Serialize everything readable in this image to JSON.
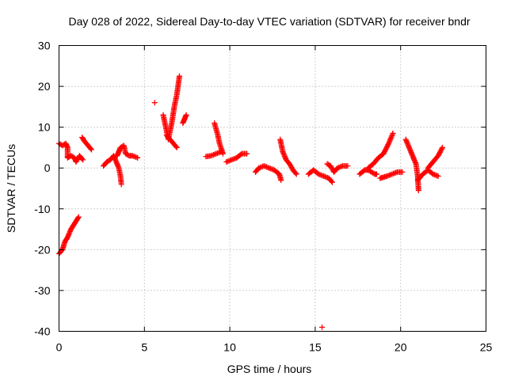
{
  "chart_data": {
    "type": "scatter",
    "title": "Day 028 of 2022, Sidereal Day-to-day VTEC variation (SDTVAR) for receiver bndr",
    "xlabel": "GPS time / hours",
    "ylabel": "SDTVAR / TECUs",
    "xlim": [
      0,
      25
    ],
    "ylim": [
      -40,
      30
    ],
    "xticks": [
      0,
      5,
      10,
      15,
      20,
      25
    ],
    "yticks": [
      -40,
      -30,
      -20,
      -10,
      0,
      10,
      20,
      30
    ],
    "xtick_labels": [
      "0",
      "5",
      "10",
      "15",
      "20",
      "25"
    ],
    "ytick_labels": [
      "-40",
      "-30",
      "-20",
      "-10",
      "0",
      "10",
      "20",
      "30"
    ],
    "grid": true,
    "marker": "+",
    "marker_color": "#ff0000",
    "series": [
      {
        "name": "SDTVAR",
        "segments": [
          [
            [
              0.0,
              -21
            ],
            [
              0.2,
              -20
            ],
            [
              0.35,
              -18
            ],
            [
              0.5,
              -17
            ],
            [
              0.7,
              -15
            ],
            [
              0.85,
              -14
            ],
            [
              1.0,
              -13
            ],
            [
              1.15,
              -12
            ]
          ],
          [
            [
              0.0,
              6
            ],
            [
              0.2,
              5.5
            ],
            [
              0.4,
              6
            ],
            [
              0.5,
              5
            ],
            [
              0.5,
              2.5
            ],
            [
              0.7,
              3
            ],
            [
              0.9,
              2.5
            ],
            [
              1.0,
              1.5
            ],
            [
              1.2,
              3
            ],
            [
              1.4,
              2
            ]
          ],
          [
            [
              1.35,
              7.5
            ],
            [
              1.5,
              6.5
            ],
            [
              1.7,
              5.5
            ],
            [
              1.9,
              4.5
            ]
          ],
          [
            [
              2.6,
              0.5
            ],
            [
              2.8,
              1.5
            ],
            [
              3.0,
              2
            ],
            [
              3.2,
              3
            ],
            [
              3.3,
              2
            ],
            [
              3.5,
              0
            ],
            [
              3.6,
              -2
            ],
            [
              3.65,
              -4
            ]
          ],
          [
            [
              3.4,
              3
            ],
            [
              3.5,
              4
            ],
            [
              3.6,
              5
            ],
            [
              3.8,
              5.5
            ],
            [
              3.9,
              3.5
            ],
            [
              4.1,
              3
            ],
            [
              4.3,
              3
            ],
            [
              4.6,
              2.5
            ]
          ],
          [
            [
              5.6,
              16
            ]
          ],
          [
            [
              6.1,
              13
            ],
            [
              6.3,
              9
            ],
            [
              6.4,
              7
            ],
            [
              6.6,
              11
            ],
            [
              6.75,
              15
            ],
            [
              6.9,
              18
            ],
            [
              7.05,
              22.5
            ]
          ],
          [
            [
              6.3,
              8
            ],
            [
              6.5,
              7
            ],
            [
              6.7,
              6
            ],
            [
              6.9,
              5
            ]
          ],
          [
            [
              7.25,
              11
            ],
            [
              7.35,
              12
            ],
            [
              7.45,
              13
            ]
          ],
          [
            [
              8.6,
              2.8
            ],
            [
              8.9,
              3
            ],
            [
              9.2,
              3.5
            ],
            [
              9.5,
              4
            ]
          ],
          [
            [
              9.1,
              11
            ],
            [
              9.3,
              8
            ],
            [
              9.4,
              6
            ],
            [
              9.6,
              3.5
            ]
          ],
          [
            [
              9.8,
              1.5
            ],
            [
              10.1,
              2
            ],
            [
              10.4,
              2.5
            ],
            [
              10.7,
              3.5
            ],
            [
              11.0,
              3.5
            ]
          ],
          [
            [
              11.5,
              -1
            ],
            [
              11.7,
              0
            ],
            [
              12.0,
              0.5
            ],
            [
              12.3,
              0
            ],
            [
              12.6,
              -0.5
            ],
            [
              12.9,
              -1.5
            ],
            [
              13.0,
              -3
            ]
          ],
          [
            [
              12.95,
              7
            ],
            [
              13.1,
              4
            ],
            [
              13.3,
              2
            ],
            [
              13.5,
              1
            ],
            [
              13.7,
              -0.5
            ],
            [
              13.9,
              -1.5
            ]
          ],
          [
            [
              14.6,
              -1.5
            ],
            [
              14.9,
              -0.5
            ],
            [
              15.2,
              -1.5
            ],
            [
              15.5,
              -2
            ],
            [
              15.8,
              -2.5
            ],
            [
              16.0,
              -3.5
            ]
          ],
          [
            [
              15.7,
              1
            ],
            [
              15.9,
              0.5
            ],
            [
              16.1,
              -1
            ],
            [
              16.3,
              0
            ],
            [
              16.6,
              0.5
            ],
            [
              16.9,
              0.5
            ]
          ],
          [
            [
              15.4,
              -39
            ]
          ],
          [
            [
              17.6,
              -1.5
            ],
            [
              17.9,
              -0.5
            ],
            [
              18.1,
              -0.5
            ],
            [
              18.3,
              -1
            ],
            [
              18.5,
              -1.5
            ],
            [
              18.6,
              -1.5
            ]
          ],
          [
            [
              18.1,
              0
            ],
            [
              18.4,
              1
            ],
            [
              18.7,
              2.5
            ],
            [
              19.0,
              3.5
            ],
            [
              19.3,
              6
            ],
            [
              19.55,
              8.5
            ]
          ],
          [
            [
              18.8,
              -2.5
            ],
            [
              19.2,
              -2
            ],
            [
              19.5,
              -1.5
            ],
            [
              19.8,
              -1
            ],
            [
              20.1,
              -1
            ]
          ],
          [
            [
              20.3,
              7
            ],
            [
              20.5,
              5
            ],
            [
              20.7,
              3
            ],
            [
              20.9,
              1
            ],
            [
              21.0,
              -2
            ],
            [
              21.05,
              -5.5
            ]
          ],
          [
            [
              21.0,
              -3
            ],
            [
              21.3,
              -1.5
            ],
            [
              21.6,
              -0.5
            ],
            [
              21.9,
              -1.5
            ],
            [
              22.2,
              -2
            ]
          ],
          [
            [
              21.6,
              0
            ],
            [
              21.8,
              1
            ],
            [
              22.0,
              2
            ],
            [
              22.2,
              3
            ],
            [
              22.45,
              5
            ]
          ]
        ]
      }
    ]
  }
}
